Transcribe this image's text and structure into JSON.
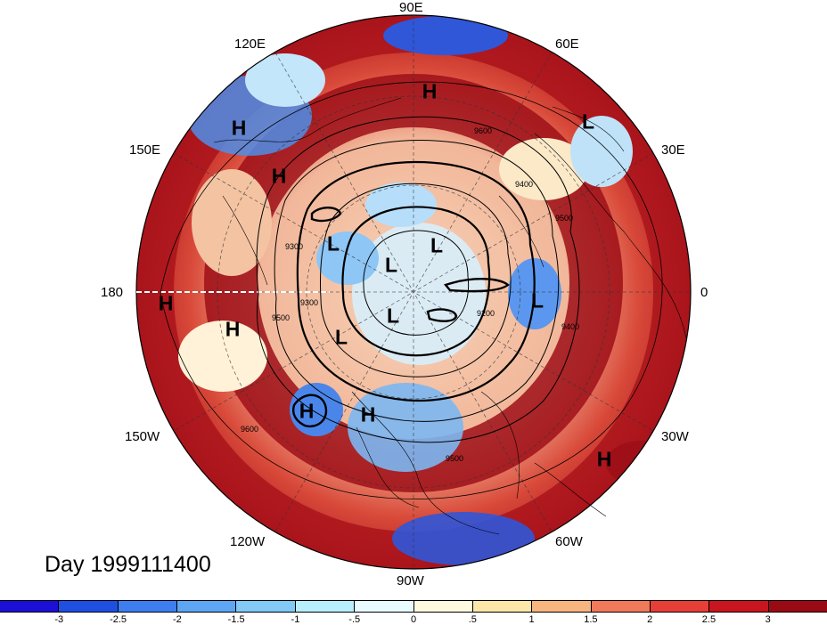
{
  "map": {
    "title": "Day 1999111400",
    "longitude_labels": [
      "90E",
      "60E",
      "30E",
      "0",
      "30W",
      "60W",
      "90W",
      "120W",
      "150W",
      "180",
      "150E",
      "120E"
    ],
    "pressure_systems": [
      "H",
      "L",
      "H",
      "H",
      "L",
      "L",
      "L",
      "L",
      "L",
      "H",
      "H",
      "L",
      "H",
      "H",
      "H"
    ],
    "contour_labels": [
      "9600",
      "9500",
      "9400",
      "9300",
      "9200",
      "9500",
      "9600",
      "9300",
      "9400",
      "9500"
    ],
    "colors": {
      "ocean_warm": "#a50f15",
      "ocean_cold": "#2b5fd9",
      "neutral": "#fff6d8"
    }
  },
  "colorbar": {
    "tick_labels": [
      "-3",
      "-2.5",
      "-2",
      "-1.5",
      "-1",
      "-.5",
      "0",
      ".5",
      "1",
      "1.5",
      "2",
      "2.5",
      "3"
    ],
    "colors": [
      "#1c0fd6",
      "#1f4fe0",
      "#3e7ef0",
      "#5ea6f4",
      "#82c9f7",
      "#b9eefc",
      "#e8fcff",
      "#fffae0",
      "#fde7a8",
      "#f7b580",
      "#f07a5a",
      "#e63f37",
      "#c8151e",
      "#9a0a14"
    ]
  }
}
